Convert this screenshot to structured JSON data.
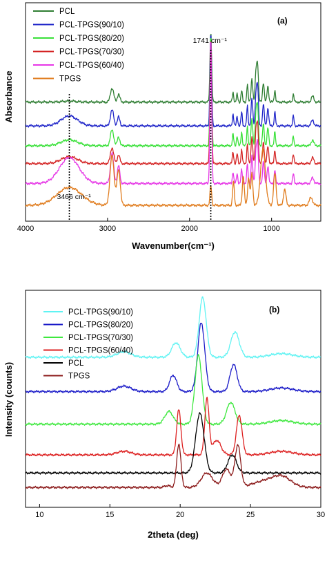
{
  "chart_data": [
    {
      "panel": "(a)",
      "type": "line",
      "xlabel": "Wavenumber(cm⁻¹)",
      "ylabel": "Absorbance",
      "xlim": [
        4000,
        400
      ],
      "x_reversed": true,
      "x_ticks": [
        4000,
        3000,
        2000,
        1000
      ],
      "legend_position": "top-left",
      "annotations": [
        {
          "text": "1741 cm⁻¹",
          "x": 1741
        },
        {
          "text": "3466 cm⁻¹",
          "x": 3466
        }
      ],
      "colors": {
        "PCL": "#2e7d32",
        "PCL-TPGS(90/10)": "#1f25c9",
        "PCL-TPGS(80/20)": "#38e038",
        "PCL-TPGS(70/30)": "#d42424",
        "PCL-TPGS(60/40)": "#e636e6",
        "TPGS": "#e07b1c"
      },
      "series": [
        {
          "name": "PCL",
          "baseline": 6.0,
          "peaks": [
            [
              3466,
              0.05,
              80
            ],
            [
              2945,
              0.7,
              20
            ],
            [
              2865,
              0.4,
              15
            ],
            [
              1741,
              3.6,
              10
            ],
            [
              1470,
              0.5,
              8
            ],
            [
              1420,
              0.4,
              8
            ],
            [
              1365,
              0.6,
              8
            ],
            [
              1295,
              0.9,
              8
            ],
            [
              1240,
              1.2,
              10
            ],
            [
              1190,
              1.5,
              10
            ],
            [
              1170,
              1.8,
              10
            ],
            [
              1100,
              1.0,
              10
            ],
            [
              1045,
              0.8,
              10
            ],
            [
              960,
              0.6,
              8
            ],
            [
              735,
              0.4,
              8
            ],
            [
              500,
              0.3,
              15
            ]
          ]
        },
        {
          "name": "PCL-TPGS(90/10)",
          "baseline": 4.8,
          "peaks": [
            [
              3466,
              0.5,
              100
            ],
            [
              2945,
              0.8,
              20
            ],
            [
              2865,
              0.45,
              15
            ],
            [
              1741,
              4.7,
              10
            ],
            [
              1470,
              0.6,
              8
            ],
            [
              1420,
              0.5,
              8
            ],
            [
              1365,
              0.7,
              8
            ],
            [
              1295,
              1.0,
              8
            ],
            [
              1240,
              1.4,
              10
            ],
            [
              1190,
              1.6,
              10
            ],
            [
              1170,
              1.9,
              10
            ],
            [
              1100,
              1.1,
              10
            ],
            [
              1045,
              0.9,
              10
            ],
            [
              960,
              0.7,
              8
            ],
            [
              735,
              0.5,
              8
            ],
            [
              500,
              0.3,
              15
            ]
          ]
        },
        {
          "name": "PCL-TPGS(80/20)",
          "baseline": 3.8,
          "peaks": [
            [
              3466,
              0.3,
              100
            ],
            [
              2945,
              0.8,
              20
            ],
            [
              2865,
              0.45,
              15
            ],
            [
              1741,
              5.6,
              10
            ],
            [
              1470,
              0.6,
              8
            ],
            [
              1420,
              0.5,
              8
            ],
            [
              1365,
              0.7,
              8
            ],
            [
              1295,
              1.0,
              8
            ],
            [
              1240,
              1.4,
              10
            ],
            [
              1190,
              1.6,
              10
            ],
            [
              1170,
              1.9,
              10
            ],
            [
              1100,
              1.1,
              10
            ],
            [
              1045,
              0.9,
              10
            ],
            [
              960,
              0.7,
              8
            ],
            [
              735,
              0.5,
              8
            ],
            [
              500,
              0.3,
              15
            ]
          ]
        },
        {
          "name": "PCL-TPGS(70/30)",
          "baseline": 2.9,
          "peaks": [
            [
              3466,
              0.35,
              100
            ],
            [
              2945,
              0.8,
              20
            ],
            [
              2865,
              0.45,
              15
            ],
            [
              1741,
              6.4,
              10
            ],
            [
              1470,
              0.6,
              8
            ],
            [
              1420,
              0.5,
              8
            ],
            [
              1365,
              0.7,
              8
            ],
            [
              1295,
              1.0,
              8
            ],
            [
              1240,
              1.4,
              10
            ],
            [
              1190,
              1.6,
              10
            ],
            [
              1170,
              1.9,
              10
            ],
            [
              1100,
              1.1,
              10
            ],
            [
              1045,
              0.9,
              10
            ],
            [
              960,
              0.7,
              8
            ],
            [
              735,
              0.5,
              8
            ],
            [
              500,
              0.3,
              15
            ]
          ]
        },
        {
          "name": "PCL-TPGS(60/40)",
          "baseline": 1.9,
          "peaks": [
            [
              3466,
              1.3,
              120
            ],
            [
              2945,
              1.5,
              20
            ],
            [
              2865,
              0.9,
              15
            ],
            [
              1741,
              7.4,
              10
            ],
            [
              1470,
              0.6,
              8
            ],
            [
              1420,
              0.5,
              8
            ],
            [
              1365,
              0.7,
              8
            ],
            [
              1295,
              1.0,
              8
            ],
            [
              1240,
              1.4,
              10
            ],
            [
              1190,
              1.6,
              10
            ],
            [
              1170,
              1.9,
              10
            ],
            [
              1100,
              1.1,
              10
            ],
            [
              1045,
              0.9,
              10
            ],
            [
              960,
              0.7,
              8
            ],
            [
              735,
              0.5,
              8
            ],
            [
              500,
              0.3,
              15
            ]
          ]
        },
        {
          "name": "TPGS",
          "baseline": 0.8,
          "peaks": [
            [
              3466,
              0.9,
              150
            ],
            [
              2945,
              2.5,
              25
            ],
            [
              2865,
              1.8,
              20
            ],
            [
              1741,
              1.0,
              10
            ],
            [
              1465,
              1.2,
              10
            ],
            [
              1345,
              1.5,
              12
            ],
            [
              1280,
              1.4,
              12
            ],
            [
              1240,
              1.6,
              12
            ],
            [
              1105,
              2.8,
              30
            ],
            [
              960,
              1.6,
              15
            ],
            [
              840,
              0.8,
              15
            ],
            [
              520,
              0.4,
              20
            ]
          ]
        }
      ],
      "ylim": [
        0,
        11
      ]
    },
    {
      "panel": "(b)",
      "type": "line",
      "xlabel": "2theta (deg)",
      "ylabel": "Intensity (counts)",
      "xlim": [
        9,
        30
      ],
      "x_ticks": [
        10,
        15,
        20,
        25,
        30
      ],
      "legend_position": "top-left",
      "colors": {
        "PCL-TPGS(90/10)": "#5ff3f3",
        "PCL-TPGS(80/20)": "#1a1ac8",
        "PCL-TPGS(70/30)": "#3ee83e",
        "PCL-TPGS(60/40)": "#dd1f1f",
        "PCL": "#000000",
        "TPGS": "#8b1a1a"
      },
      "series": [
        {
          "name": "PCL-TPGS(90/10)",
          "baseline": 8.3,
          "peaks": [
            [
              16.0,
              0.3,
              0.5
            ],
            [
              19.7,
              0.8,
              0.3
            ],
            [
              21.6,
              3.3,
              0.25
            ],
            [
              23.9,
              1.4,
              0.3
            ],
            [
              27.2,
              0.2,
              0.8
            ]
          ]
        },
        {
          "name": "PCL-TPGS(80/20)",
          "baseline": 6.4,
          "peaks": [
            [
              16.0,
              0.3,
              0.5
            ],
            [
              19.5,
              0.9,
              0.25
            ],
            [
              21.5,
              3.8,
              0.25
            ],
            [
              23.8,
              1.5,
              0.25
            ],
            [
              27.2,
              0.2,
              0.8
            ]
          ]
        },
        {
          "name": "PCL-TPGS(70/30)",
          "baseline": 4.6,
          "peaks": [
            [
              19.2,
              0.7,
              0.3
            ],
            [
              21.3,
              3.8,
              0.25
            ],
            [
              23.6,
              1.2,
              0.3
            ],
            [
              27.2,
              0.2,
              0.8
            ]
          ]
        },
        {
          "name": "PCL-TPGS(60/40)",
          "baseline": 2.9,
          "peaks": [
            [
              16.0,
              0.2,
              0.5
            ],
            [
              19.9,
              2.5,
              0.15
            ],
            [
              21.9,
              3.1,
              0.15
            ],
            [
              22.6,
              0.8,
              0.3
            ],
            [
              24.2,
              2.2,
              0.2
            ],
            [
              27.2,
              0.2,
              0.8
            ]
          ]
        },
        {
          "name": "PCL",
          "baseline": 1.9,
          "peaks": [
            [
              21.4,
              3.3,
              0.3
            ],
            [
              23.7,
              1.0,
              0.3
            ]
          ]
        },
        {
          "name": "TPGS",
          "baseline": 1.1,
          "peaks": [
            [
              19.1,
              0.1,
              0.2
            ],
            [
              19.9,
              2.4,
              0.15
            ],
            [
              21.9,
              0.8,
              0.4
            ],
            [
              23.3,
              1.0,
              0.3
            ],
            [
              24.1,
              2.3,
              0.2
            ],
            [
              26.3,
              0.4,
              1.0
            ],
            [
              27.3,
              0.4,
              0.6
            ]
          ]
        }
      ],
      "ylim": [
        0,
        12
      ]
    }
  ]
}
